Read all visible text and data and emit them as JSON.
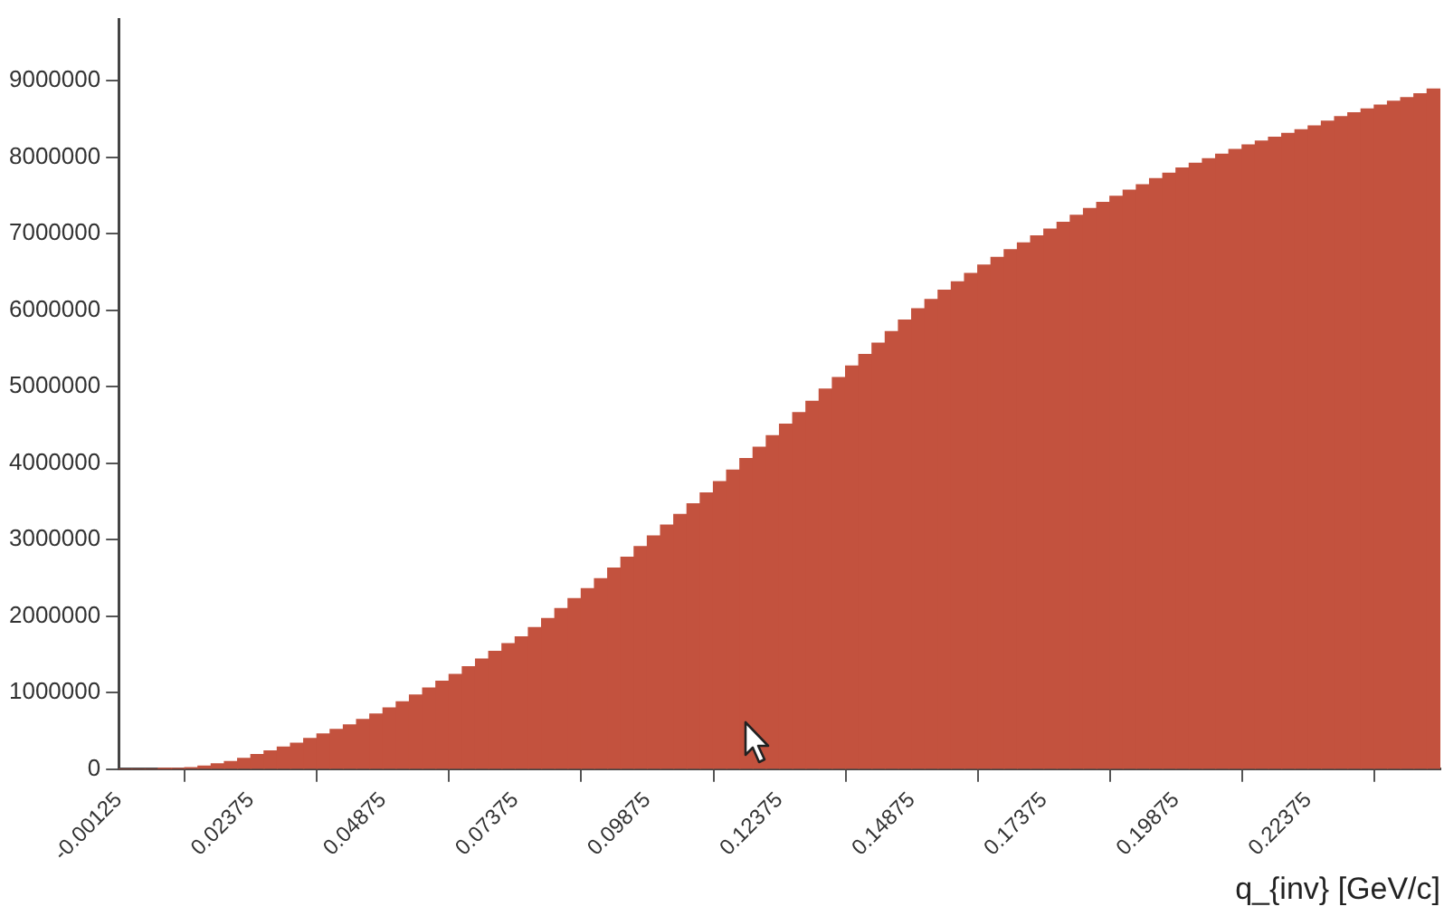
{
  "chart_data": {
    "type": "histogram",
    "xlabel": "q_{inv} [GeV/c]",
    "color": "#c3523e",
    "bins": [
      -0.00125,
      0.00125,
      0.00375,
      0.00625,
      0.00875,
      0.01125,
      0.01375,
      0.01625,
      0.01875,
      0.02125,
      0.02375,
      0.02625,
      0.02875,
      0.03125,
      0.03375,
      0.03625,
      0.03875,
      0.04125,
      0.04375,
      0.04625,
      0.04875,
      0.05125,
      0.05375,
      0.05625,
      0.05875,
      0.06125,
      0.06375,
      0.06625,
      0.06875,
      0.07125,
      0.07375,
      0.07625,
      0.07875,
      0.08125,
      0.08375,
      0.08625,
      0.08875,
      0.09125,
      0.09375,
      0.09625,
      0.09875,
      0.10125,
      0.10375,
      0.10625,
      0.10875,
      0.11125,
      0.11375,
      0.11625,
      0.11875,
      0.12125,
      0.12375,
      0.12625,
      0.12875,
      0.13125,
      0.13375,
      0.13625,
      0.13875,
      0.14125,
      0.14375,
      0.14625,
      0.14875,
      0.15125,
      0.15375,
      0.15625,
      0.15875,
      0.16125,
      0.16375,
      0.16625,
      0.16875,
      0.17125,
      0.17375,
      0.17625,
      0.17875,
      0.18125,
      0.18375,
      0.18625,
      0.18875,
      0.19125,
      0.19375,
      0.19625,
      0.19875,
      0.20125,
      0.20375,
      0.20625,
      0.20875,
      0.21125,
      0.21375,
      0.21625,
      0.21875,
      0.22125,
      0.22375,
      0.22625,
      0.22875,
      0.23125,
      0.23375,
      0.23625,
      0.23875,
      0.24125,
      0.24375,
      0.24625,
      0.24875
    ],
    "values": [
      0,
      0,
      0,
      3000,
      8000,
      20000,
      40000,
      70000,
      100000,
      140000,
      190000,
      240000,
      290000,
      340000,
      400000,
      460000,
      520000,
      580000,
      650000,
      720000,
      800000,
      880000,
      970000,
      1060000,
      1150000,
      1240000,
      1340000,
      1440000,
      1540000,
      1640000,
      1730000,
      1850000,
      1970000,
      2100000,
      2230000,
      2360000,
      2490000,
      2630000,
      2770000,
      2910000,
      3050000,
      3190000,
      3330000,
      3470000,
      3610000,
      3760000,
      3910000,
      4060000,
      4210000,
      4360000,
      4510000,
      4660000,
      4810000,
      4970000,
      5120000,
      5270000,
      5420000,
      5570000,
      5720000,
      5870000,
      6020000,
      6140000,
      6260000,
      6370000,
      6480000,
      6590000,
      6690000,
      6790000,
      6880000,
      6970000,
      7060000,
      7150000,
      7240000,
      7330000,
      7410000,
      7490000,
      7570000,
      7640000,
      7720000,
      7790000,
      7860000,
      7920000,
      7980000,
      8040000,
      8100000,
      8160000,
      8210000,
      8260000,
      8310000,
      8360000,
      8410000,
      8470000,
      8530000,
      8580000,
      8630000,
      8680000,
      8730000,
      8780000,
      8830000,
      8890000
    ],
    "xlim": [
      -0.00125,
      0.24875
    ],
    "xticks": [
      -0.00125,
      0.02375,
      0.04875,
      0.07375,
      0.09875,
      0.12375,
      0.14875,
      0.17375,
      0.19875,
      0.22375
    ],
    "ylim": [
      0,
      9800000
    ],
    "yticks": [
      0,
      1000000,
      2000000,
      3000000,
      4000000,
      5000000,
      6000000,
      7000000,
      8000000,
      9000000
    ]
  }
}
